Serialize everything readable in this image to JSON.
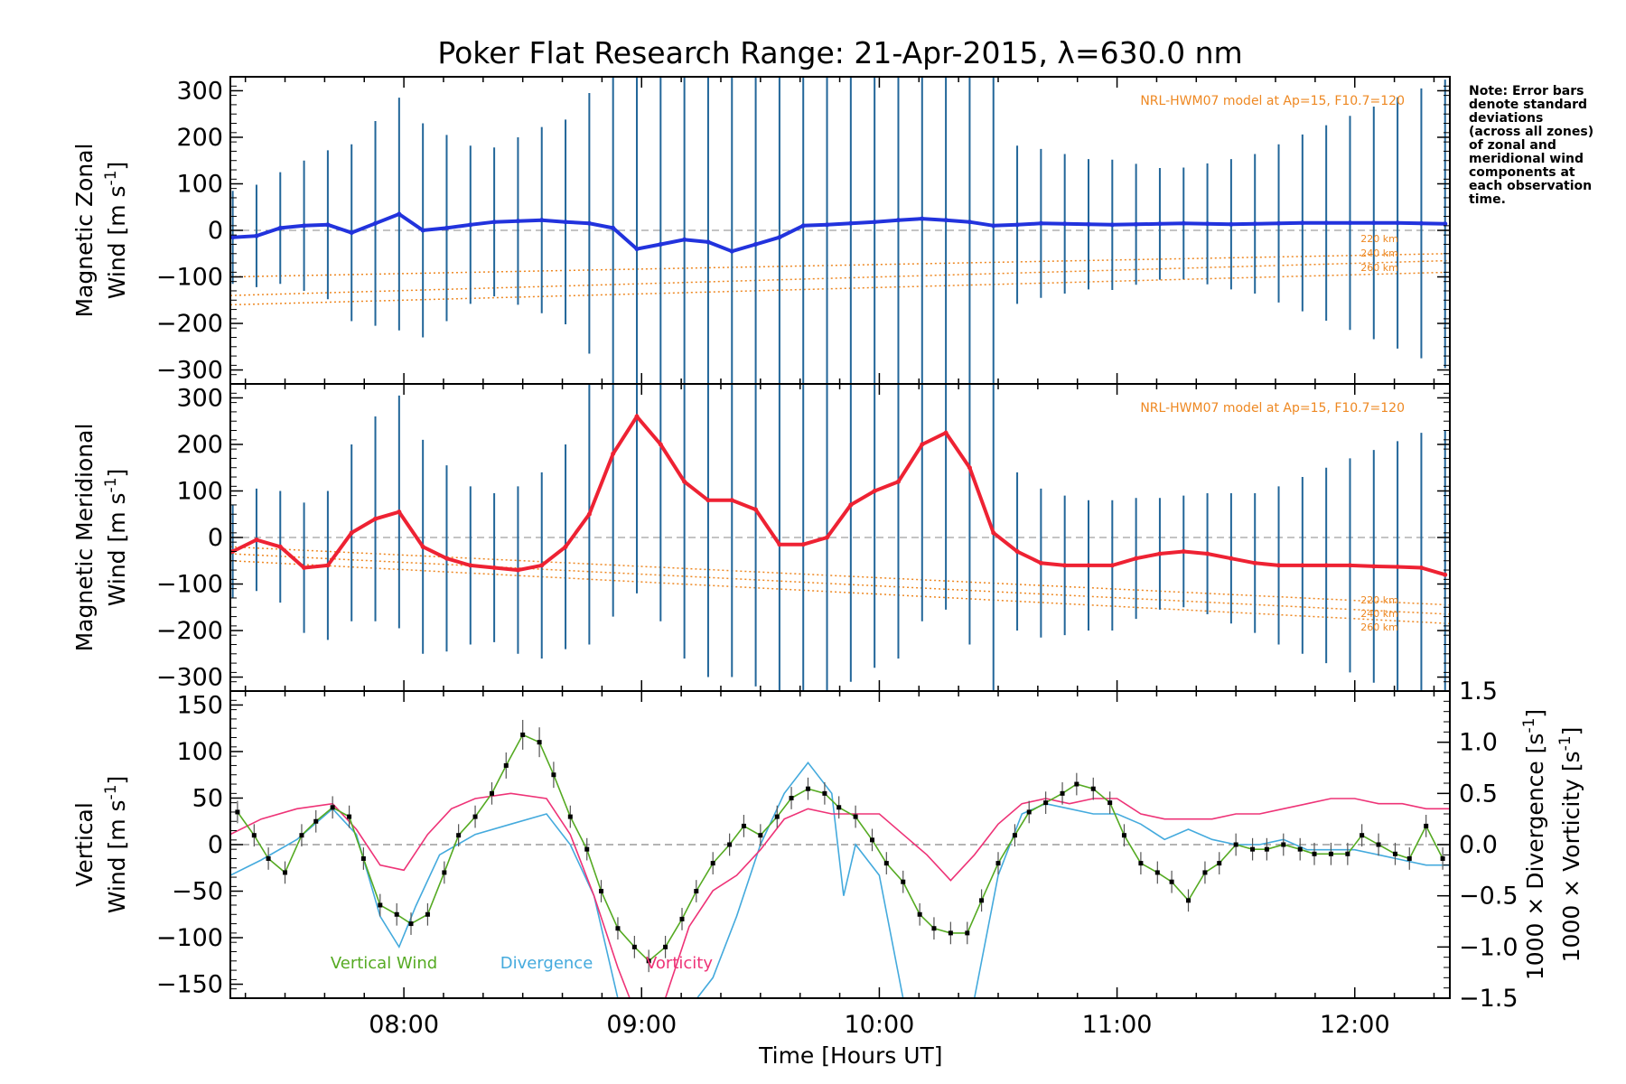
{
  "title": "Poker Flat Research Range: 21-Apr-2015, λ=630.0 nm",
  "note": [
    "Note: Error bars",
    "denote standard",
    "deviations",
    "(across all zones)",
    "of zonal and",
    "meridional wind",
    "components at",
    "each observation",
    "time."
  ],
  "colors": {
    "zonal": "#2233dd",
    "meridional": "#ee2233",
    "errorbar": "#226699",
    "vertical": "#55aa22",
    "divergence": "#44aadd",
    "vorticity": "#ee3377",
    "model": "#ee8822",
    "zero": "#888888"
  },
  "chart_data": [
    {
      "type": "line",
      "panel": "zonal",
      "ylabel_line1": "Magnetic Zonal",
      "ylabel_line2": "Wind [m s",
      "ylabel_sup": "-1",
      "ylabel_end": "]",
      "ylim": [
        -330,
        330
      ],
      "yticks": [
        300,
        200,
        100,
        0,
        -100,
        -200,
        -300
      ],
      "model_label": "NRL-HWM07 model at Ap=15, F10.7=120",
      "altitudes": [
        "220 km",
        "240 km",
        "260 km"
      ],
      "times": [
        7.28,
        7.38,
        7.48,
        7.58,
        7.68,
        7.78,
        7.88,
        7.98,
        8.08,
        8.18,
        8.28,
        8.38,
        8.48,
        8.58,
        8.68,
        8.78,
        8.88,
        8.98,
        9.08,
        9.18,
        9.28,
        9.38,
        9.48,
        9.58,
        9.68,
        9.78,
        9.88,
        9.98,
        10.08,
        10.18,
        10.28,
        10.38,
        10.48,
        10.58,
        10.68,
        10.78,
        10.88,
        10.98,
        11.08,
        11.18,
        11.28,
        11.38,
        11.48,
        11.58,
        11.68,
        11.78,
        11.88,
        11.98,
        12.08,
        12.18,
        12.28,
        12.38
      ],
      "values": [
        -15,
        -12,
        5,
        10,
        12,
        -5,
        15,
        35,
        0,
        5,
        12,
        18,
        20,
        22,
        18,
        15,
        5,
        -40,
        -30,
        -20,
        -25,
        -45,
        -30,
        -15,
        10,
        12,
        15,
        18,
        22,
        25,
        22,
        18,
        10,
        12,
        15,
        14,
        13,
        12,
        13,
        14,
        15,
        14,
        13,
        14,
        15,
        16,
        16,
        16,
        16,
        16,
        15,
        14
      ],
      "errors": [
        100,
        110,
        120,
        140,
        160,
        190,
        220,
        250,
        230,
        200,
        170,
        160,
        180,
        200,
        220,
        280,
        350,
        380,
        380,
        380,
        380,
        380,
        380,
        380,
        380,
        380,
        380,
        380,
        380,
        380,
        380,
        380,
        380,
        170,
        160,
        150,
        140,
        140,
        130,
        120,
        120,
        130,
        140,
        150,
        170,
        190,
        210,
        230,
        250,
        270,
        290,
        310
      ],
      "model_series": [
        {
          "name": "220 km",
          "values": [
            -100,
            -50
          ]
        },
        {
          "name": "240 km",
          "values": [
            -140,
            -65
          ]
        },
        {
          "name": "260 km",
          "values": [
            -160,
            -90
          ]
        }
      ]
    },
    {
      "type": "line",
      "panel": "meridional",
      "ylabel_line1": "Magnetic Meridional",
      "ylabel_line2": "Wind [m s",
      "ylabel_sup": "-1",
      "ylabel_end": "]",
      "ylim": [
        -330,
        330
      ],
      "yticks": [
        300,
        200,
        100,
        0,
        -100,
        -200,
        -300
      ],
      "model_label": "NRL-HWM07 model at Ap=15, F10.7=120",
      "altitudes": [
        "220 km",
        "240 km",
        "260 km"
      ],
      "times": [
        7.28,
        7.38,
        7.48,
        7.58,
        7.68,
        7.78,
        7.88,
        7.98,
        8.08,
        8.18,
        8.28,
        8.38,
        8.48,
        8.58,
        8.68,
        8.78,
        8.88,
        8.98,
        9.08,
        9.18,
        9.28,
        9.38,
        9.48,
        9.58,
        9.68,
        9.78,
        9.88,
        9.98,
        10.08,
        10.18,
        10.28,
        10.38,
        10.48,
        10.58,
        10.68,
        10.78,
        10.88,
        10.98,
        11.08,
        11.18,
        11.28,
        11.38,
        11.48,
        11.58,
        11.68,
        11.78,
        11.88,
        11.98,
        12.08,
        12.18,
        12.28,
        12.38
      ],
      "values": [
        -30,
        -5,
        -20,
        -65,
        -60,
        10,
        40,
        55,
        -20,
        -45,
        -60,
        -65,
        -70,
        -60,
        -20,
        50,
        180,
        260,
        200,
        120,
        80,
        80,
        60,
        -15,
        -15,
        0,
        70,
        100,
        120,
        200,
        225,
        150,
        10,
        -30,
        -55,
        -60,
        -60,
        -60,
        -45,
        -35,
        -30,
        -35,
        -45,
        -55,
        -60,
        -60,
        -60,
        -60,
        -62,
        -63,
        -65,
        -80
      ],
      "errors": [
        100,
        110,
        120,
        140,
        160,
        190,
        220,
        250,
        230,
        200,
        170,
        160,
        180,
        200,
        220,
        280,
        350,
        380,
        380,
        380,
        380,
        380,
        380,
        380,
        380,
        380,
        380,
        380,
        380,
        380,
        380,
        380,
        380,
        170,
        160,
        150,
        140,
        140,
        130,
        120,
        120,
        130,
        140,
        150,
        170,
        190,
        210,
        230,
        250,
        270,
        290,
        310
      ],
      "model_series": [
        {
          "name": "220 km",
          "values": [
            -20,
            -145
          ]
        },
        {
          "name": "240 km",
          "values": [
            -35,
            -165
          ]
        },
        {
          "name": "260 km",
          "values": [
            -50,
            -185
          ]
        }
      ]
    },
    {
      "type": "line",
      "panel": "vertical",
      "ylabel_line1": "Vertical",
      "ylabel_line2": "Wind [m s",
      "ylabel_sup": "-1",
      "ylabel_end": "]",
      "ylim": [
        -165,
        165
      ],
      "yticks": [
        150,
        100,
        50,
        0,
        -50,
        -100,
        -150
      ],
      "y2lim": [
        -1.5,
        1.5
      ],
      "y2ticks": [
        1.5,
        1.0,
        0.5,
        0.0,
        -0.5,
        -1.0,
        -1.5
      ],
      "y2ticklabels": [
        "1.5",
        "1.0",
        "0.5",
        "0.0",
        "−0.5",
        "−1.0",
        "−1.5"
      ],
      "y2label_div": "1000 × Divergence [s",
      "y2label_vort": "1000 × Vorticity [s",
      "y2label_sup": "-1",
      "y2label_end": "]",
      "xlabel": "Time [Hours UT]",
      "xticks": [
        8,
        9,
        10,
        11,
        12
      ],
      "xticklabels": [
        "08:00",
        "09:00",
        "10:00",
        "11:00",
        "12:00"
      ],
      "xlim": [
        7.27,
        12.4
      ],
      "legend": [
        "Vertical Wind",
        "Divergence",
        "Vorticity"
      ],
      "vertical": {
        "times": [
          7.3,
          7.37,
          7.43,
          7.5,
          7.57,
          7.63,
          7.7,
          7.77,
          7.83,
          7.9,
          7.97,
          8.03,
          8.1,
          8.17,
          8.23,
          8.3,
          8.37,
          8.43,
          8.5,
          8.57,
          8.63,
          8.7,
          8.77,
          8.83,
          8.9,
          8.97,
          9.03,
          9.1,
          9.17,
          9.23,
          9.3,
          9.37,
          9.43,
          9.5,
          9.57,
          9.63,
          9.7,
          9.77,
          9.83,
          9.9,
          9.97,
          10.03,
          10.1,
          10.17,
          10.23,
          10.3,
          10.37,
          10.43,
          10.5,
          10.57,
          10.63,
          10.7,
          10.77,
          10.83,
          10.9,
          10.97,
          11.03,
          11.1,
          11.17,
          11.23,
          11.3,
          11.37,
          11.43,
          11.5,
          11.57,
          11.63,
          11.7,
          11.77,
          11.83,
          11.9,
          11.97,
          12.03,
          12.1,
          12.17,
          12.23,
          12.3,
          12.37
        ],
        "values": [
          35,
          10,
          -15,
          -30,
          10,
          25,
          40,
          30,
          -15,
          -65,
          -75,
          -85,
          -75,
          -30,
          10,
          30,
          55,
          85,
          118,
          110,
          75,
          30,
          -5,
          -50,
          -90,
          -110,
          -125,
          -110,
          -80,
          -50,
          -20,
          0,
          20,
          10,
          30,
          50,
          60,
          55,
          40,
          30,
          5,
          -20,
          -40,
          -75,
          -90,
          -95,
          -95,
          -60,
          -20,
          10,
          35,
          45,
          55,
          65,
          60,
          45,
          10,
          -20,
          -30,
          -40,
          -60,
          -30,
          -20,
          0,
          -5,
          -5,
          0,
          -5,
          -10,
          -10,
          -10,
          10,
          0,
          -10,
          -15,
          20,
          -15
        ],
        "errors": [
          12,
          12,
          12,
          12,
          12,
          12,
          12,
          12,
          12,
          12,
          12,
          12,
          12,
          12,
          12,
          12,
          12,
          14,
          16,
          16,
          14,
          12,
          12,
          12,
          12,
          12,
          12,
          12,
          12,
          12,
          12,
          12,
          12,
          12,
          12,
          12,
          12,
          12,
          12,
          12,
          12,
          12,
          12,
          12,
          12,
          12,
          12,
          12,
          12,
          12,
          12,
          12,
          12,
          12,
          12,
          12,
          12,
          12,
          12,
          12,
          12,
          12,
          12,
          12,
          12,
          12,
          12,
          12,
          12,
          12,
          12,
          12,
          12,
          12,
          12,
          12,
          12
        ]
      },
      "divergence": {
        "times": [
          7.27,
          7.4,
          7.55,
          7.7,
          7.8,
          7.9,
          7.98,
          8.05,
          8.15,
          8.3,
          8.45,
          8.6,
          8.7,
          8.8,
          8.9,
          9.0,
          9.1,
          9.2,
          9.3,
          9.4,
          9.5,
          9.6,
          9.7,
          9.8,
          9.85,
          9.9,
          10.0,
          10.1,
          10.2,
          10.3,
          10.4,
          10.5,
          10.6,
          10.7,
          10.8,
          10.9,
          11.0,
          11.1,
          11.2,
          11.3,
          11.4,
          11.5,
          11.6,
          11.7,
          11.8,
          11.9,
          12.0,
          12.1,
          12.2,
          12.3,
          12.4
        ],
        "values": [
          -0.3,
          -0.15,
          0.05,
          0.35,
          0.1,
          -0.7,
          -1.0,
          -0.6,
          -0.1,
          0.1,
          0.2,
          0.3,
          0.0,
          -0.5,
          -1.5,
          -2.5,
          -2.0,
          -1.6,
          -1.3,
          -0.7,
          0.0,
          0.5,
          0.8,
          0.5,
          -0.5,
          0.0,
          -0.3,
          -1.5,
          -2.5,
          -2.5,
          -1.5,
          -0.3,
          0.3,
          0.4,
          0.35,
          0.3,
          0.3,
          0.2,
          0.05,
          0.15,
          0.05,
          0.0,
          0.0,
          0.05,
          -0.05,
          -0.05,
          -0.05,
          -0.1,
          -0.15,
          -0.2,
          -0.2
        ]
      },
      "vorticity": {
        "times": [
          7.27,
          7.4,
          7.55,
          7.7,
          7.8,
          7.9,
          8.0,
          8.1,
          8.2,
          8.3,
          8.45,
          8.6,
          8.7,
          8.8,
          8.9,
          9.0,
          9.1,
          9.2,
          9.3,
          9.4,
          9.5,
          9.6,
          9.7,
          9.8,
          9.9,
          10.0,
          10.1,
          10.2,
          10.3,
          10.4,
          10.5,
          10.6,
          10.7,
          10.8,
          10.9,
          11.0,
          11.1,
          11.2,
          11.3,
          11.4,
          11.5,
          11.6,
          11.7,
          11.8,
          11.9,
          12.0,
          12.1,
          12.2,
          12.3,
          12.4
        ],
        "values": [
          0.1,
          0.25,
          0.35,
          0.4,
          0.15,
          -0.2,
          -0.25,
          0.1,
          0.35,
          0.45,
          0.5,
          0.45,
          0.1,
          -0.5,
          -1.2,
          -1.8,
          -1.5,
          -0.8,
          -0.45,
          -0.3,
          -0.05,
          0.25,
          0.35,
          0.3,
          0.3,
          0.3,
          0.1,
          -0.1,
          -0.35,
          -0.1,
          0.2,
          0.4,
          0.45,
          0.4,
          0.45,
          0.45,
          0.3,
          0.25,
          0.25,
          0.25,
          0.3,
          0.3,
          0.35,
          0.4,
          0.45,
          0.45,
          0.4,
          0.4,
          0.35,
          0.35
        ]
      }
    }
  ]
}
